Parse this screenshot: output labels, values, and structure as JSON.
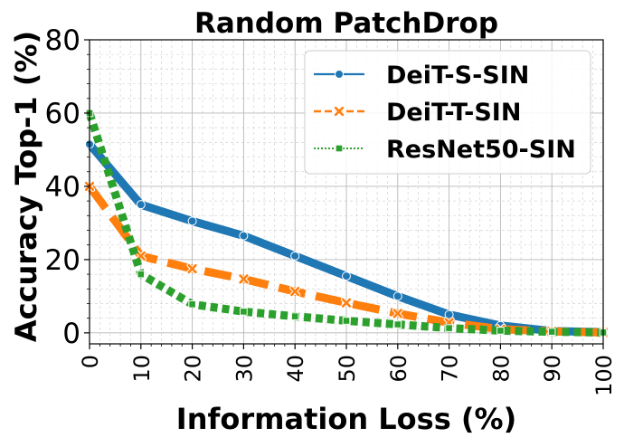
{
  "chart_data": {
    "type": "line",
    "title": "Random PatchDrop",
    "xlabel": "Information Loss (%)",
    "ylabel": "Accuracy Top-1 (%)",
    "xlim": [
      0,
      100
    ],
    "ylim": [
      -3,
      80
    ],
    "xticks": [
      0,
      10,
      20,
      30,
      40,
      50,
      60,
      70,
      80,
      90,
      100
    ],
    "yticks": [
      0,
      20,
      40,
      60,
      80
    ],
    "grid": true,
    "legend_position": "upper right",
    "series": [
      {
        "name": "DeiT-S-SIN",
        "color": "#1f77b4",
        "linestyle": "solid",
        "marker": "circle",
        "x": [
          0,
          10,
          20,
          30,
          40,
          50,
          60,
          70,
          80,
          90,
          100
        ],
        "y": [
          51.5,
          35.0,
          30.5,
          26.5,
          21.0,
          15.5,
          10.0,
          5.0,
          2.0,
          0.5,
          0.2
        ]
      },
      {
        "name": "DeiT-T-SIN",
        "color": "#ff7f0e",
        "linestyle": "dashed",
        "marker": "x",
        "x": [
          0,
          10,
          20,
          30,
          40,
          50,
          60,
          70,
          80,
          90,
          100
        ],
        "y": [
          40.0,
          21.0,
          17.5,
          14.7,
          11.3,
          8.2,
          5.3,
          2.8,
          1.0,
          0.4,
          0.1
        ]
      },
      {
        "name": "ResNet50-SIN",
        "color": "#2ca02c",
        "linestyle": "dotted",
        "marker": "square",
        "x": [
          0,
          10,
          20,
          30,
          40,
          50,
          60,
          70,
          80,
          90,
          100
        ],
        "y": [
          60.0,
          16.0,
          7.8,
          5.8,
          4.5,
          3.3,
          2.3,
          1.3,
          0.6,
          0.3,
          0.1
        ]
      }
    ]
  }
}
